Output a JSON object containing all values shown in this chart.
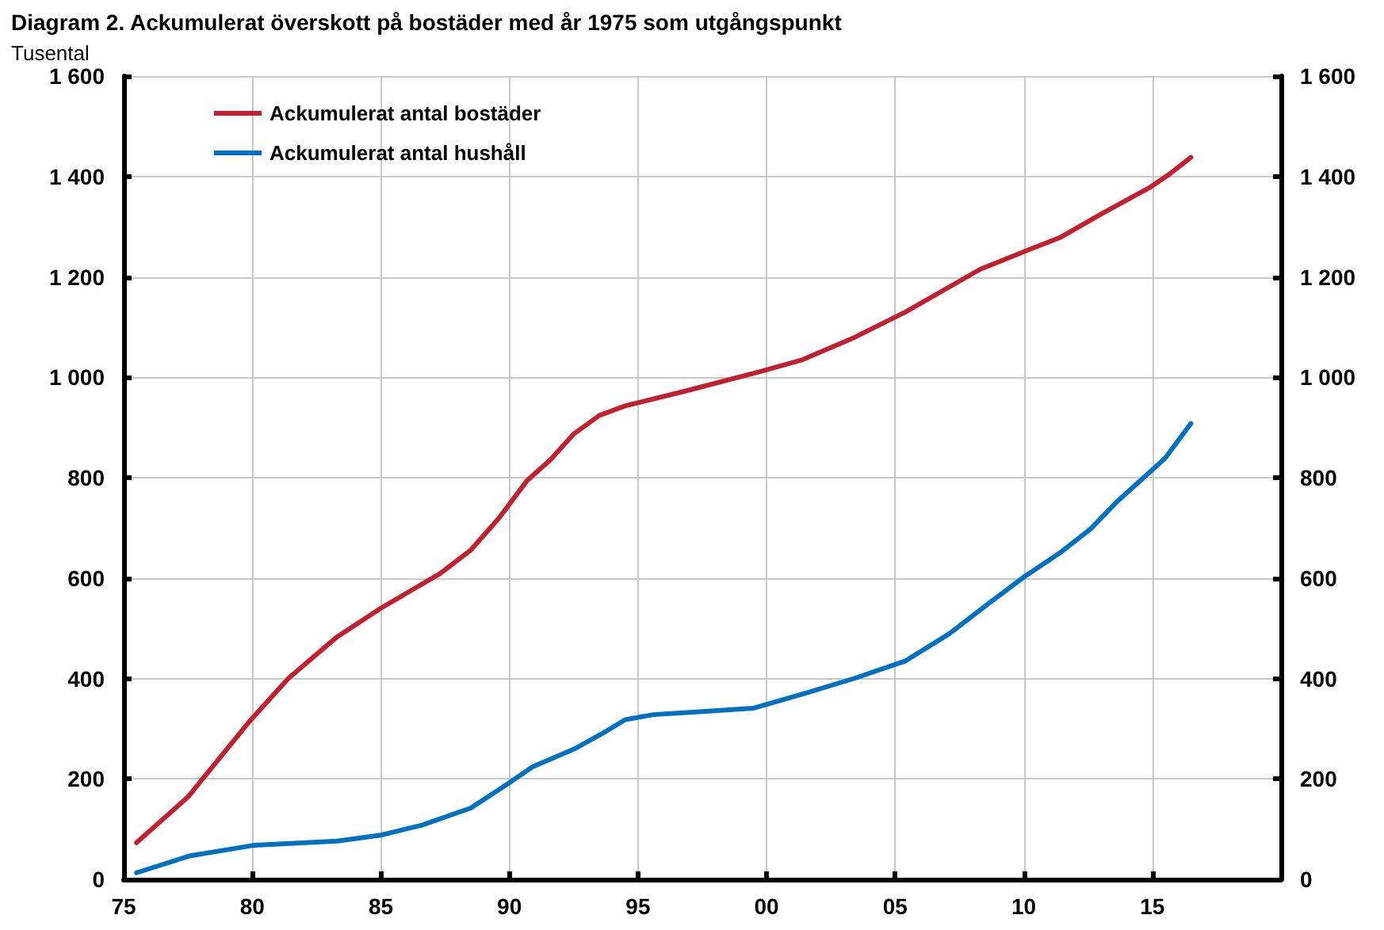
{
  "chart_data": {
    "type": "line",
    "title": "Diagram 2. Ackumulerat överskott på bostäder med år 1975 som utgångspunkt",
    "ylabel": "Tusental",
    "xlim": [
      1975,
      2020
    ],
    "xticks": [
      {
        "value": 1975,
        "label": "75"
      },
      {
        "value": 1980,
        "label": "80"
      },
      {
        "value": 1985,
        "label": "85"
      },
      {
        "value": 1990,
        "label": "90"
      },
      {
        "value": 1995,
        "label": "95"
      },
      {
        "value": 2000,
        "label": "00"
      },
      {
        "value": 2005,
        "label": "05"
      },
      {
        "value": 2010,
        "label": "10"
      },
      {
        "value": 2015,
        "label": "15"
      },
      {
        "value": 2020,
        "label": null
      }
    ],
    "ylim": [
      0,
      1600
    ],
    "yticks": [
      0,
      200,
      400,
      600,
      800,
      {
        "value": 1000,
        "label": "1 000"
      },
      {
        "value": 1200,
        "label": "1 200"
      },
      {
        "value": 1400,
        "label": "1 400"
      },
      {
        "value": 1600,
        "label": "1 600"
      }
    ],
    "y2lim": [
      0,
      1600
    ],
    "y2ticks": [
      0,
      200,
      400,
      600,
      800,
      {
        "value": 1000,
        "label": "1 000"
      },
      {
        "value": 1200,
        "label": "1 200"
      },
      {
        "value": 1400,
        "label": "1 400"
      },
      {
        "value": 1600,
        "label": "1 600"
      }
    ],
    "grid": true,
    "legend": "top left",
    "marker": "none",
    "line_style": "solid",
    "series": [
      {
        "name": "Ackumulerat antal bostäder",
        "color": "#c0202f",
        "x": [
          1975.5,
          1977.5,
          1979.9,
          1981.4,
          1983.3,
          1985,
          1987.3,
          1988.5,
          1989.6,
          1990.7,
          1991.6,
          1992.5,
          1993.5,
          1994.5,
          1996.8,
          1999.8,
          2001.4,
          2003.4,
          2005.4,
          2008.3,
          2010,
          2011.4,
          2013,
          2014.9,
          2015.7,
          2016.5
        ],
        "values": [
          73,
          164,
          315,
          400,
          483,
          540,
          609,
          656,
          720,
          795,
          836,
          887,
          924,
          943,
          972,
          1012,
          1035,
          1079,
          1130,
          1215,
          1250,
          1278,
          1325,
          1378,
          1406,
          1438
        ]
      },
      {
        "name": "Ackumulerat antal hushåll",
        "color": "#0070c0",
        "x": [
          1975.5,
          1977.6,
          1980.1,
          1983.3,
          1985,
          1986.6,
          1988.5,
          1989.9,
          1990.9,
          1992.5,
          1993.6,
          1994.5,
          1995.6,
          1997.5,
          1999.5,
          2001.4,
          2003.4,
          2005.4,
          2007.1,
          2008.7,
          2010,
          2011.4,
          2012.6,
          2013.6,
          2014.9,
          2015.5,
          2016.5
        ],
        "values": [
          13,
          47,
          68,
          76,
          88,
          108,
          142,
          189,
          224,
          259,
          290,
          318,
          328,
          334,
          341,
          369,
          400,
          435,
          489,
          552,
          602,
          650,
          698,
          751,
          811,
          839,
          908
        ]
      }
    ]
  }
}
